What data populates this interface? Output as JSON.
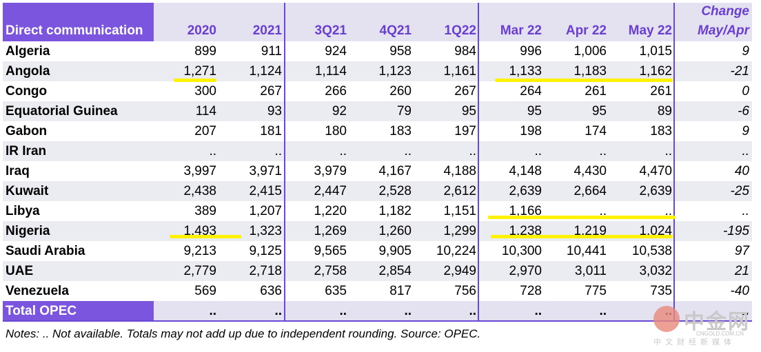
{
  "table": {
    "top_header": {
      "change_label": "Change"
    },
    "header": [
      "Direct communication",
      "2020",
      "2021",
      "3Q21",
      "4Q21",
      "1Q22",
      "Mar 22",
      "Apr 22",
      "May 22",
      "May/Apr"
    ],
    "rows": [
      [
        "Algeria",
        "899",
        "911",
        "924",
        "958",
        "984",
        "996",
        "1,006",
        "1,015",
        "9"
      ],
      [
        "Angola",
        "1,271",
        "1,124",
        "1,114",
        "1,123",
        "1,161",
        "1,133",
        "1,183",
        "1,162",
        "-21"
      ],
      [
        "Congo",
        "300",
        "267",
        "266",
        "260",
        "267",
        "264",
        "261",
        "261",
        "0"
      ],
      [
        "Equatorial Guinea",
        "114",
        "93",
        "92",
        "79",
        "95",
        "95",
        "95",
        "89",
        "-6"
      ],
      [
        "Gabon",
        "207",
        "181",
        "180",
        "183",
        "197",
        "198",
        "174",
        "183",
        "9"
      ],
      [
        "IR Iran",
        "..",
        "..",
        "..",
        "..",
        "..",
        "..",
        "..",
        "..",
        ".."
      ],
      [
        "Iraq",
        "3,997",
        "3,971",
        "3,979",
        "4,167",
        "4,188",
        "4,148",
        "4,430",
        "4,470",
        "40"
      ],
      [
        "Kuwait",
        "2,438",
        "2,415",
        "2,447",
        "2,528",
        "2,612",
        "2,639",
        "2,664",
        "2,639",
        "-25"
      ],
      [
        "Libya",
        "389",
        "1,207",
        "1,220",
        "1,182",
        "1,151",
        "1,166",
        "..",
        "..",
        ".."
      ],
      [
        "Nigeria",
        "1,493",
        "1,323",
        "1,269",
        "1,260",
        "1,299",
        "1,238",
        "1,219",
        "1,024",
        "-195"
      ],
      [
        "Saudi Arabia",
        "9,213",
        "9,125",
        "9,565",
        "9,905",
        "10,224",
        "10,300",
        "10,441",
        "10,538",
        "97"
      ],
      [
        "UAE",
        "2,779",
        "2,718",
        "2,758",
        "2,854",
        "2,949",
        "2,970",
        "3,011",
        "3,032",
        "21"
      ],
      [
        "Venezuela",
        "569",
        "636",
        "635",
        "817",
        "756",
        "728",
        "775",
        "735",
        "-40"
      ]
    ],
    "total": [
      "Total  OPEC",
      "..",
      "..",
      "..",
      "..",
      "..",
      "..",
      "..",
      "..",
      ".."
    ]
  },
  "notes": "Notes:  .. Not available. Totals may not add up due to independent rounding. Source: OPEC.",
  "watermark": {
    "brand": "中金网",
    "url": "CNGOLD.COM.CN",
    "subtitle": "中文财经新媒体"
  },
  "colors": {
    "header_bg": "#7b55de",
    "header_text": "#6a3fd0",
    "stripe": "#ebebf2",
    "highlight": "#fff200"
  }
}
